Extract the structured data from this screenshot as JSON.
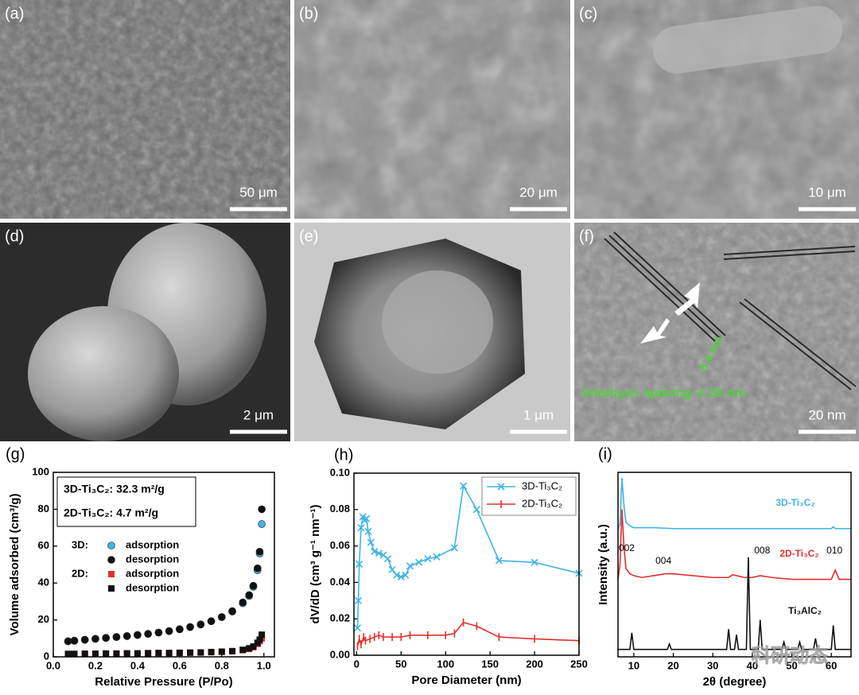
{
  "panels": [
    {
      "label": "(a)",
      "scale": "50 μm"
    },
    {
      "label": "(b)",
      "scale": "20 μm"
    },
    {
      "label": "(c)",
      "scale": "10 μm"
    },
    {
      "label": "(d)",
      "scale": "2 μm"
    },
    {
      "label": "(e)",
      "scale": "1 μm"
    },
    {
      "label": "(f)",
      "scale": "20 nm",
      "annotations": [
        "5.4 nm",
        "interlayer spacing~1.35 nm"
      ]
    }
  ],
  "watermark": "科研动态",
  "chart_data": [
    {
      "type": "scatter",
      "panel_label": "(g)",
      "x_label": "Relative Pressure (P/Po)",
      "y_label": "Volume adsorbed (cm³/g)",
      "annotations": [
        "3D-Ti₃C₂: 32.3 m²/g",
        "2D-Ti₃C₂:  4.7 m²/g"
      ],
      "legend_groups": [
        "3D:",
        "2D:"
      ],
      "xlim": [
        0,
        1.05
      ],
      "ylim": [
        0,
        100
      ],
      "xticks": [
        {
          "value": 0,
          "label": "0.0"
        },
        0.2,
        0.4,
        0.6,
        0.8,
        {
          "value": 1,
          "label": "1.0"
        }
      ],
      "yticks": [
        0,
        20,
        40,
        60,
        80,
        100
      ],
      "series": [
        {
          "name": "adsorption",
          "color": "#3fb4e6",
          "marker": "circle",
          "x": [
            0.07,
            0.1,
            0.15,
            0.2,
            0.25,
            0.3,
            0.35,
            0.4,
            0.45,
            0.5,
            0.55,
            0.6,
            0.65,
            0.7,
            0.75,
            0.8,
            0.85,
            0.9,
            0.93,
            0.95,
            0.97,
            0.98,
            0.99
          ],
          "values": [
            8.5,
            8.8,
            9.3,
            9.8,
            10.3,
            10.8,
            11.3,
            11.9,
            12.5,
            13.2,
            14,
            15,
            16.2,
            17.6,
            19.3,
            21.5,
            24.5,
            29,
            33,
            38,
            47,
            56,
            72
          ]
        },
        {
          "name": "desorption",
          "color": "#111111",
          "marker": "circle",
          "x": [
            0.07,
            0.1,
            0.15,
            0.2,
            0.25,
            0.3,
            0.35,
            0.4,
            0.45,
            0.5,
            0.55,
            0.6,
            0.65,
            0.7,
            0.75,
            0.8,
            0.85,
            0.9,
            0.93,
            0.95,
            0.97,
            0.98,
            0.99
          ],
          "values": [
            8.4,
            8.7,
            9.2,
            9.7,
            10.2,
            10.7,
            11.2,
            11.8,
            12.4,
            13.1,
            13.9,
            14.9,
            16.1,
            17.5,
            19.3,
            21.6,
            24.8,
            29.5,
            33.5,
            38.5,
            48,
            57,
            80
          ]
        },
        {
          "name": "adsorption",
          "color": "#e0302a",
          "marker": "square",
          "x": [
            0.07,
            0.1,
            0.15,
            0.2,
            0.25,
            0.3,
            0.35,
            0.4,
            0.45,
            0.5,
            0.55,
            0.6,
            0.65,
            0.7,
            0.75,
            0.8,
            0.85,
            0.9,
            0.93,
            0.95,
            0.97,
            0.98,
            0.99
          ],
          "values": [
            1.5,
            1.5,
            1.6,
            1.6,
            1.7,
            1.7,
            1.8,
            1.8,
            1.9,
            2,
            2,
            2.1,
            2.2,
            2.3,
            2.5,
            2.7,
            3,
            3.6,
            4.3,
            5.2,
            7,
            8.5,
            10
          ]
        },
        {
          "name": "desorption",
          "color": "#111111",
          "marker": "square",
          "x": [
            0.07,
            0.1,
            0.15,
            0.2,
            0.25,
            0.3,
            0.35,
            0.4,
            0.45,
            0.5,
            0.55,
            0.6,
            0.65,
            0.7,
            0.75,
            0.8,
            0.85,
            0.9,
            0.93,
            0.95,
            0.97,
            0.98,
            0.99
          ],
          "values": [
            1.6,
            1.6,
            1.7,
            1.7,
            1.8,
            1.8,
            1.9,
            1.9,
            2,
            2.1,
            2.1,
            2.2,
            2.3,
            2.4,
            2.6,
            2.8,
            3.1,
            3.8,
            4.6,
            5.6,
            7.6,
            9.3,
            12
          ]
        }
      ]
    },
    {
      "type": "line",
      "panel_label": "(h)",
      "x_label": "Pore Diameter (nm)",
      "y_label": "dV/dD (cm³ g⁻¹ nm⁻¹)",
      "xlim": [
        -3,
        250
      ],
      "ylim": [
        0,
        0.1
      ],
      "xticks": [
        0,
        50,
        100,
        150,
        200,
        250
      ],
      "yticks": [
        {
          "value": 0,
          "label": "0.00"
        },
        {
          "value": 0.02,
          "label": "0.02"
        },
        {
          "value": 0.04,
          "label": "0.04"
        },
        {
          "value": 0.06,
          "label": "0.06"
        },
        {
          "value": 0.08,
          "label": "0.08"
        },
        {
          "value": 0.1,
          "label": "0.10"
        }
      ],
      "series": [
        {
          "name": "3D-Ti₃C₂",
          "color": "#3fb4e6",
          "marker": "x",
          "x": [
            1,
            2,
            3,
            5,
            7,
            9,
            11,
            13,
            16,
            20,
            25,
            30,
            35,
            40,
            45,
            50,
            55,
            60,
            70,
            80,
            90,
            110,
            120,
            135,
            160,
            200,
            250
          ],
          "values": [
            0.015,
            0.03,
            0.05,
            0.07,
            0.076,
            0.074,
            0.075,
            0.068,
            0.062,
            0.057,
            0.056,
            0.055,
            0.053,
            0.047,
            0.044,
            0.043,
            0.044,
            0.049,
            0.051,
            0.053,
            0.054,
            0.059,
            0.093,
            0.08,
            0.052,
            0.051,
            0.045
          ]
        },
        {
          "name": "2D-Ti₃C₂",
          "color": "#e0302a",
          "marker": "plus",
          "x": [
            1,
            3,
            5,
            8,
            10,
            15,
            20,
            25,
            30,
            40,
            50,
            60,
            80,
            100,
            110,
            120,
            135,
            160,
            200,
            250
          ],
          "values": [
            0.005,
            0.009,
            0.006,
            0.01,
            0.008,
            0.009,
            0.01,
            0.011,
            0.01,
            0.01,
            0.01,
            0.011,
            0.011,
            0.011,
            0.012,
            0.018,
            0.016,
            0.01,
            0.009,
            0.008
          ]
        }
      ]
    },
    {
      "type": "line",
      "panel_label": "(i)",
      "x_label": "2θ (degree)",
      "y_label": "Intensity (a.u.)",
      "peak_labels": [
        "002",
        "004",
        "008",
        "010"
      ],
      "xlim": [
        6,
        65
      ],
      "ylim": [
        0,
        100
      ],
      "xticks": [
        10,
        20,
        30,
        40,
        50,
        60
      ],
      "series": [
        {
          "name": "3D-Ti₃C₂",
          "color": "#3fb4e6",
          "x": [
            6,
            6.5,
            7,
            7.3,
            7.6,
            8,
            9,
            10,
            15,
            20,
            25,
            30,
            35,
            40,
            45,
            50,
            55,
            60,
            60.5,
            61,
            65
          ],
          "values": [
            69,
            72,
            97,
            88,
            80,
            73,
            71,
            70,
            70,
            69.5,
            69.5,
            69.5,
            69.5,
            69.5,
            69.5,
            69.5,
            69.5,
            69.5,
            70.5,
            69.5,
            69.5
          ]
        },
        {
          "name": "2D-Ti₃C₂",
          "color": "#e0302a",
          "x": [
            6,
            6.5,
            7,
            7.5,
            8,
            9,
            10,
            12,
            15,
            18,
            20,
            25,
            30,
            34,
            35,
            38,
            40,
            42,
            45,
            50,
            55,
            60,
            61,
            62,
            65
          ],
          "values": [
            42,
            50,
            80,
            60,
            48,
            45,
            44,
            43,
            44,
            45,
            45,
            44,
            43,
            43,
            44.5,
            43,
            43,
            44,
            43,
            42,
            42,
            42,
            47,
            42,
            42
          ]
        },
        {
          "name": "Ti₃AlC₂",
          "color": "#111111",
          "x": [
            6,
            9,
            9.5,
            10,
            18.5,
            19,
            19.5,
            33.5,
            34,
            34.5,
            35.5,
            36,
            36.5,
            38.5,
            39,
            39.5,
            41.5,
            42,
            42.5,
            47.5,
            48,
            48.5,
            51.5,
            52,
            52.5,
            55.5,
            56,
            56.5,
            60,
            60.5,
            61,
            65
          ],
          "values": [
            4,
            4,
            13,
            4,
            4,
            7,
            4,
            4,
            15,
            4,
            4,
            12,
            4,
            4,
            54,
            4,
            4,
            20,
            4,
            4,
            8,
            4,
            4,
            8,
            4,
            4,
            10,
            4,
            4,
            17,
            4,
            4
          ]
        }
      ]
    }
  ]
}
